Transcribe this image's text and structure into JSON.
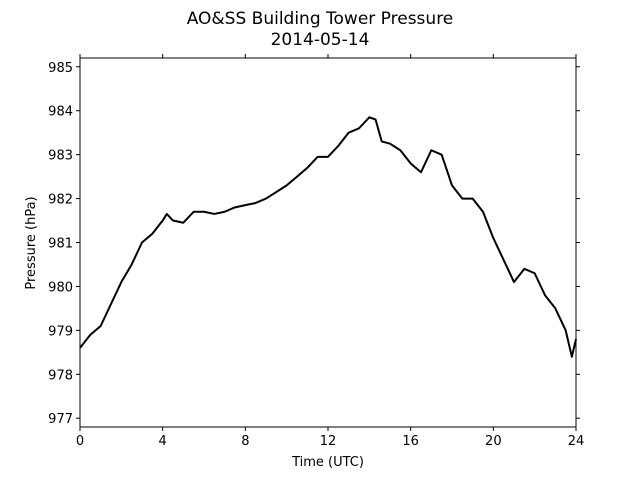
{
  "chart_data": {
    "type": "line",
    "title": "AO&SS Building Tower Pressure",
    "subtitle": "2014-05-14",
    "x_label": "Time (UTC)",
    "y_label": "Pressure (hPa)",
    "xlim": [
      0,
      24
    ],
    "xticks": [
      0,
      4,
      8,
      12,
      16,
      20,
      24
    ],
    "ylim": [
      976.8,
      985.2
    ],
    "yticks": [
      977,
      978,
      979,
      980,
      981,
      982,
      983,
      984,
      985
    ],
    "grid": false,
    "series": [
      {
        "color": "#000000",
        "x": [
          0,
          0.5,
          1,
          1.5,
          2,
          2.5,
          3,
          3.5,
          4,
          4.2,
          4.5,
          5,
          5.5,
          6,
          6.5,
          7,
          7.5,
          8,
          8.5,
          9,
          9.5,
          10,
          10.5,
          11,
          11.5,
          12,
          12.5,
          13,
          13.5,
          14,
          14.3,
          14.6,
          15,
          15.5,
          16,
          16.5,
          17,
          17.5,
          18,
          18.5,
          19,
          19.5,
          20,
          20.5,
          21,
          21.5,
          22,
          22.5,
          23,
          23.5,
          23.8,
          24
        ],
        "values": [
          978.6,
          978.9,
          979.1,
          979.6,
          980.1,
          980.5,
          981.0,
          981.2,
          981.5,
          981.65,
          981.5,
          981.45,
          981.7,
          981.7,
          981.65,
          981.7,
          981.8,
          981.85,
          981.9,
          982.0,
          982.15,
          982.3,
          982.5,
          982.7,
          982.95,
          982.95,
          983.2,
          983.5,
          983.6,
          983.85,
          983.8,
          983.3,
          983.25,
          983.1,
          982.8,
          982.6,
          983.1,
          983.0,
          982.3,
          982.0,
          982.0,
          981.7,
          981.1,
          980.6,
          980.1,
          980.4,
          980.3,
          979.8,
          979.5,
          979.0,
          978.4,
          978.8
        ]
      }
    ]
  }
}
